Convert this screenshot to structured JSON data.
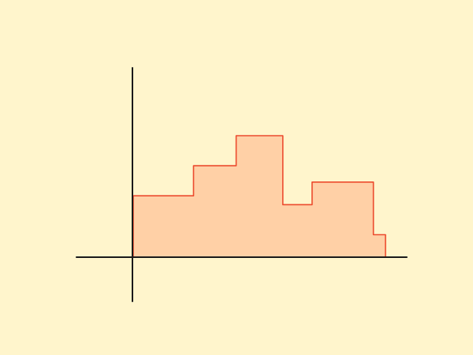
{
  "colors": {
    "background": "#fff5cc",
    "fill": "#ffd0a6",
    "stroke": "#ec4b2e",
    "axis": "#1a1a1a"
  },
  "chart_data": {
    "type": "area",
    "step": true,
    "title": "",
    "xlabel": "",
    "ylabel": "",
    "grid": false,
    "xlim": [
      0,
      1
    ],
    "ylim": [
      0,
      1
    ],
    "series": [
      {
        "x": [
          0,
          0.239,
          0.408,
          0.593,
          0.709,
          0.952,
          1.0
        ],
        "values": [
          0.505,
          0.753,
          1.0,
          0.432,
          0.618,
          0.185,
          0
        ]
      }
    ]
  }
}
